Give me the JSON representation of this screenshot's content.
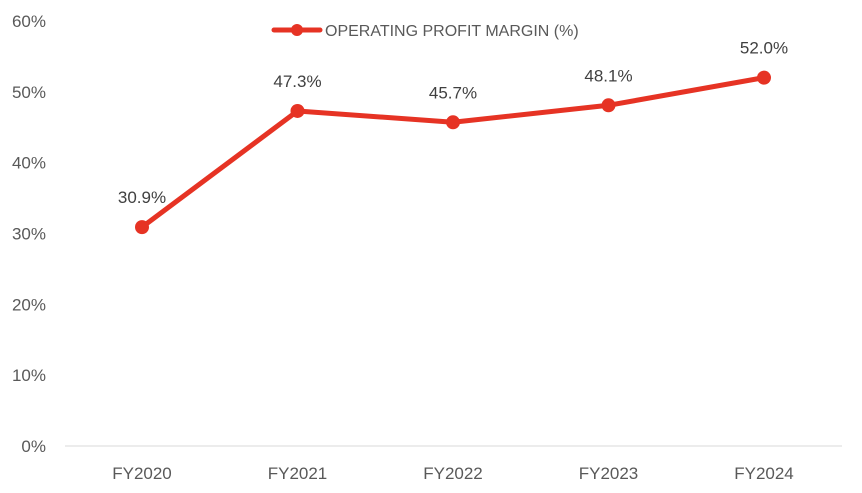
{
  "chart_data": {
    "type": "line",
    "categories": [
      "FY2020",
      "FY2021",
      "FY2022",
      "FY2023",
      "FY2024"
    ],
    "series": [
      {
        "name": "OPERATING PROFIT MARGIN (%)",
        "values": [
          30.9,
          47.3,
          45.7,
          48.1,
          52.0
        ],
        "data_labels": [
          "30.9%",
          "47.3%",
          "45.7%",
          "48.1%",
          "52.0%"
        ]
      }
    ],
    "ylim": [
      0,
      60
    ],
    "yticks": [
      "0%",
      "10%",
      "20%",
      "30%",
      "40%",
      "50%",
      "60%"
    ],
    "grid": false,
    "legend": "top-center",
    "colors": {
      "series": "#e63324",
      "axis": "#d9d9d9",
      "text": "#595959"
    }
  }
}
